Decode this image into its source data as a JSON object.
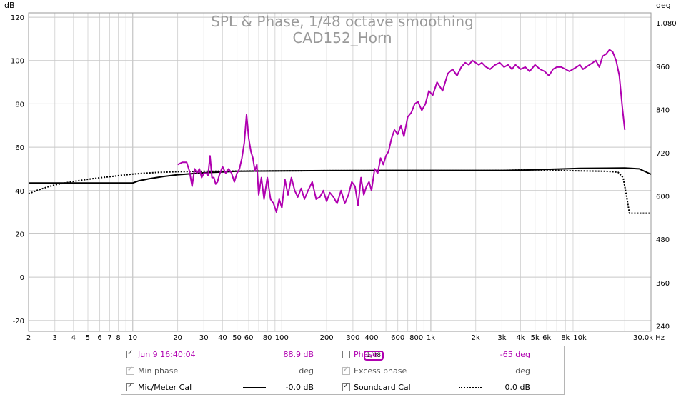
{
  "chart_data": {
    "type": "line",
    "title": "SPL & Phase, 1/48 octave smoothing",
    "subtitle": "CAD152_Horn",
    "y_left_unit": "dB",
    "y_right_unit": "deg",
    "x_unit": "Hz",
    "x_scale": "log",
    "xlim": [
      2,
      30000
    ],
    "ylim": [
      -25,
      122
    ],
    "ylim_right": [
      225,
      1108
    ],
    "grid": true,
    "y_ticks": [
      "120",
      "100",
      "80",
      "60",
      "40",
      "20",
      "0",
      "-20"
    ],
    "y_tick_values": [
      120,
      100,
      80,
      60,
      40,
      20,
      0,
      -20
    ],
    "y_right_ticks": [
      "1,080",
      "960",
      "840",
      "720",
      "600",
      "480",
      "360",
      "240"
    ],
    "y_right_tick_values": [
      1080,
      960,
      840,
      720,
      600,
      480,
      360,
      240
    ],
    "x_ticks": [
      "2",
      "3",
      "4",
      "5",
      "6",
      "7",
      "8",
      "10",
      "20",
      "30",
      "40",
      "50",
      "60",
      "80",
      "100",
      "200",
      "300",
      "400",
      "600",
      "800",
      "1k",
      "2k",
      "3k",
      "4k",
      "5k",
      "6k",
      "8k",
      "10k",
      "30.0k Hz"
    ],
    "x_tick_values": [
      2,
      3,
      4,
      5,
      6,
      7,
      8,
      10,
      20,
      30,
      40,
      50,
      60,
      80,
      100,
      200,
      300,
      400,
      600,
      800,
      1000,
      2000,
      3000,
      4000,
      5000,
      6000,
      8000,
      10000,
      30000
    ],
    "series": [
      {
        "name": "Jun 9 16:40:04",
        "color": "#b000b0",
        "style": "solid",
        "x": [
          20,
          21.5,
          23,
          24,
          25,
          26,
          27,
          28,
          29,
          30,
          31,
          32,
          33,
          34,
          35,
          36,
          37,
          38,
          40,
          42,
          44,
          46,
          48,
          50,
          52,
          54,
          56,
          58,
          60,
          62,
          64,
          66,
          68,
          70,
          73,
          76,
          80,
          84,
          88,
          92,
          96,
          100,
          105,
          110,
          116,
          122,
          128,
          135,
          142,
          150,
          160,
          170,
          180,
          190,
          200,
          210,
          222,
          235,
          250,
          265,
          280,
          295,
          310,
          325,
          340,
          355,
          370,
          385,
          400,
          420,
          440,
          460,
          480,
          500,
          520,
          545,
          570,
          600,
          630,
          660,
          700,
          740,
          780,
          820,
          870,
          920,
          970,
          1030,
          1100,
          1200,
          1300,
          1400,
          1500,
          1600,
          1700,
          1800,
          1900,
          2000,
          2100,
          2200,
          2350,
          2500,
          2700,
          2900,
          3100,
          3300,
          3500,
          3700,
          4000,
          4300,
          4600,
          5000,
          5400,
          5800,
          6200,
          6600,
          7000,
          7500,
          8000,
          8500,
          9000,
          9500,
          10000,
          10500,
          11000,
          11600,
          12200,
          12800,
          13500,
          14200,
          15000,
          15800,
          16600,
          17500,
          18400,
          19300,
          20000
        ],
        "values": [
          52,
          53,
          53,
          49,
          42,
          50,
          48,
          50,
          46,
          48,
          48,
          47,
          56,
          46,
          46,
          43,
          44,
          47,
          51,
          48,
          50,
          48,
          44,
          48,
          50,
          55,
          62,
          75,
          64,
          58,
          55,
          49,
          52,
          38,
          46,
          36,
          46,
          36,
          34,
          30,
          36,
          32,
          45,
          38,
          46,
          40,
          37,
          41,
          36,
          40,
          44,
          36,
          37,
          40,
          35,
          39,
          37,
          34,
          40,
          34,
          38,
          44,
          42,
          33,
          46,
          38,
          42,
          44,
          40,
          50,
          48,
          55,
          52,
          56,
          58,
          64,
          68,
          66,
          70,
          65,
          74,
          76,
          80,
          81,
          77,
          80,
          86,
          84,
          90,
          86,
          94,
          96,
          93,
          97,
          99,
          98,
          100,
          99,
          98,
          99,
          97,
          96,
          98,
          99,
          97,
          98,
          96,
          98,
          96,
          97,
          95,
          98,
          96,
          95,
          93,
          96,
          97,
          97,
          96,
          95,
          96,
          97,
          98,
          96,
          97,
          98,
          99,
          100,
          97,
          102,
          103,
          105,
          104,
          100,
          93,
          78,
          68
        ]
      },
      {
        "name": "Mic/Meter Cal",
        "color": "#000000",
        "style": "solid",
        "x": [
          2,
          3,
          5,
          8,
          10,
          11,
          13,
          16,
          20,
          25,
          30,
          40,
          50,
          70,
          100,
          200,
          500,
          1000,
          2000,
          3000,
          4000,
          5000,
          6000,
          8000,
          10000,
          15000,
          20000,
          25000,
          30000
        ],
        "values": [
          43.5,
          43.5,
          43.5,
          43.5,
          43.5,
          44.5,
          45.5,
          46.5,
          47.3,
          47.8,
          48.2,
          48.6,
          48.9,
          49.0,
          49.1,
          49.2,
          49.3,
          49.3,
          49.3,
          49.3,
          49.4,
          49.6,
          49.8,
          50.0,
          50.2,
          50.3,
          50.4,
          50.0,
          47.5
        ]
      },
      {
        "name": "Soundcard Cal",
        "color": "#000000",
        "style": "dotted",
        "x": [
          2,
          2.3,
          2.7,
          3,
          3.5,
          4,
          5,
          6,
          7,
          8,
          10,
          12,
          15,
          20,
          30,
          50,
          100,
          200,
          500,
          1000,
          2000,
          3000,
          4000,
          5000,
          6000,
          8000,
          10000,
          15000,
          18000,
          19500,
          20500,
          21500,
          25000,
          30000
        ],
        "values": [
          38.5,
          40.2,
          41.7,
          42.6,
          43.5,
          44.2,
          45.2,
          45.9,
          46.4,
          46.9,
          47.6,
          48.0,
          48.4,
          48.7,
          48.9,
          49.0,
          49.1,
          49.2,
          49.2,
          49.2,
          49.2,
          49.3,
          49.5,
          49.6,
          49.4,
          49.2,
          49.1,
          48.9,
          48.5,
          46,
          38,
          29.5,
          29.5,
          29.5
        ]
      }
    ]
  },
  "legend": {
    "row1": {
      "series_label": "Jun 9 16:40:04",
      "smoothing": "1/48",
      "spl_value": "88.9 dB",
      "phase_label": "Phase",
      "phase_value": "-65 deg"
    },
    "row2": {
      "min_phase_label": "Min phase",
      "min_phase_value": "deg",
      "excess_phase_label": "Excess phase",
      "excess_phase_value": "deg"
    },
    "row3": {
      "mic_label": "Mic/Meter Cal",
      "mic_value": "-0.0 dB",
      "soundcard_label": "Soundcard Cal",
      "soundcard_value": "0.0 dB"
    }
  }
}
